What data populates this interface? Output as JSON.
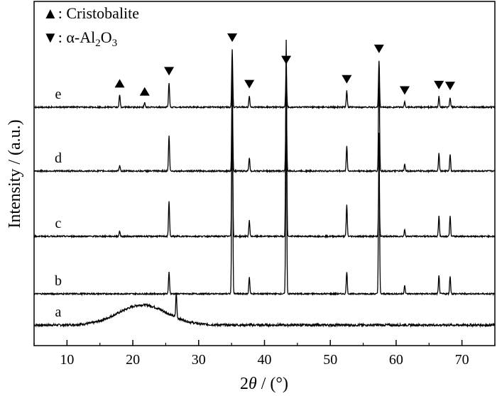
{
  "chart_data": {
    "type": "line",
    "title": "",
    "xlabel_parts": {
      "num": "2",
      "theta": "θ",
      "rest": " / (°)"
    },
    "ylabel": "Intensity / (a.u.)",
    "xlim": [
      5,
      75
    ],
    "xticks": [
      10,
      20,
      30,
      40,
      50,
      60,
      70
    ],
    "legend": {
      "placement": "top-left",
      "entries": [
        {
          "marker": "up-triangle",
          "text": "▲: Cristobalite"
        },
        {
          "marker": "down-triangle",
          "text_parts": [
            "▼: α-Al",
            "2",
            "O",
            "3"
          ]
        }
      ]
    },
    "series": [
      {
        "name": "a",
        "kind": "amorphous",
        "hump": {
          "center": 21.5,
          "height": 0.45
        },
        "peaks": [
          {
            "x": 26.6,
            "h": 0.55
          }
        ]
      },
      {
        "name": "b",
        "peaks": [
          {
            "x": 25.5,
            "h": 0.5
          },
          {
            "x": 35.1,
            "h": 5.1
          },
          {
            "x": 37.7,
            "h": 0.38
          },
          {
            "x": 43.3,
            "h": 4.3
          },
          {
            "x": 52.5,
            "h": 0.5
          },
          {
            "x": 57.4,
            "h": 3.6
          },
          {
            "x": 61.3,
            "h": 0.2
          },
          {
            "x": 66.5,
            "h": 0.4
          },
          {
            "x": 68.2,
            "h": 0.4
          }
        ]
      },
      {
        "name": "c",
        "peaks": [
          {
            "x": 18.0,
            "h": 0.12
          },
          {
            "x": 25.5,
            "h": 0.8
          },
          {
            "x": 35.1,
            "h": 3.0
          },
          {
            "x": 37.7,
            "h": 0.35
          },
          {
            "x": 43.3,
            "h": 4.4
          },
          {
            "x": 52.5,
            "h": 0.7
          },
          {
            "x": 57.4,
            "h": 1.35
          },
          {
            "x": 61.3,
            "h": 0.15
          },
          {
            "x": 66.5,
            "h": 0.45
          },
          {
            "x": 68.2,
            "h": 0.45
          }
        ]
      },
      {
        "name": "d",
        "peaks": [
          {
            "x": 18.0,
            "h": 0.12
          },
          {
            "x": 25.5,
            "h": 0.8
          },
          {
            "x": 35.1,
            "h": 1.9
          },
          {
            "x": 37.7,
            "h": 0.3
          },
          {
            "x": 43.3,
            "h": 1.7
          },
          {
            "x": 52.5,
            "h": 0.55
          },
          {
            "x": 57.4,
            "h": 2.4
          },
          {
            "x": 61.3,
            "h": 0.15
          },
          {
            "x": 66.5,
            "h": 0.4
          },
          {
            "x": 68.2,
            "h": 0.38
          }
        ]
      },
      {
        "name": "e",
        "peaks": [
          {
            "x": 18.0,
            "h": 0.28
          },
          {
            "x": 21.8,
            "h": 0.1
          },
          {
            "x": 25.5,
            "h": 0.55
          },
          {
            "x": 35.1,
            "h": 1.3
          },
          {
            "x": 37.7,
            "h": 0.26
          },
          {
            "x": 43.3,
            "h": 0.8
          },
          {
            "x": 52.5,
            "h": 0.37
          },
          {
            "x": 57.4,
            "h": 1.05
          },
          {
            "x": 61.3,
            "h": 0.12
          },
          {
            "x": 66.5,
            "h": 0.24
          },
          {
            "x": 68.2,
            "h": 0.22
          }
        ]
      }
    ],
    "annotations": [
      {
        "marker": "up-triangle",
        "x": 18.0,
        "series": "e"
      },
      {
        "marker": "up-triangle",
        "x": 21.8,
        "series": "e"
      },
      {
        "marker": "down-triangle",
        "x": 25.5,
        "series": "e"
      },
      {
        "marker": "down-triangle",
        "x": 35.1,
        "series": "e"
      },
      {
        "marker": "down-triangle",
        "x": 37.7,
        "series": "e"
      },
      {
        "marker": "down-triangle",
        "x": 43.3,
        "series": "e"
      },
      {
        "marker": "down-triangle",
        "x": 52.5,
        "series": "e"
      },
      {
        "marker": "down-triangle",
        "x": 57.4,
        "series": "e"
      },
      {
        "marker": "down-triangle",
        "x": 61.3,
        "series": "e"
      },
      {
        "marker": "down-triangle",
        "x": 66.5,
        "series": "e"
      },
      {
        "marker": "down-triangle",
        "x": 68.2,
        "series": "e"
      }
    ]
  }
}
